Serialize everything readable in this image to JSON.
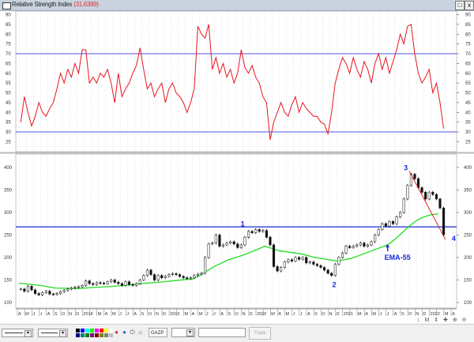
{
  "window": {
    "title": "Relative Strength Index",
    "value": "(31.6399)",
    "restore_label": "□",
    "close_label": "x"
  },
  "colors": {
    "rsi_line": "#e8141c",
    "rsi_levels": "#5050e0",
    "ema_line": "#22dd22",
    "level_line": "#1a2ad6",
    "trend_line": "#e0202a",
    "bars": "#111111",
    "annotation": "#1a2ad6"
  },
  "chart_data": [
    {
      "type": "line",
      "title": "Relative Strength Index",
      "start": "2017-04",
      "interval": "semi-monthly",
      "ylim": [
        20,
        95
      ],
      "yticks": [
        25,
        30,
        35,
        40,
        45,
        50,
        55,
        60,
        65,
        70,
        75,
        80,
        85,
        90
      ],
      "levels": [
        70,
        30
      ],
      "grid": true,
      "values": [
        35,
        48,
        40,
        33,
        38,
        45,
        40,
        38,
        42,
        45,
        52,
        60,
        55,
        62,
        58,
        65,
        60,
        72,
        72,
        55,
        58,
        55,
        60,
        58,
        62,
        55,
        45,
        60,
        48,
        52,
        55,
        60,
        64,
        73,
        62,
        52,
        55,
        48,
        52,
        55,
        45,
        52,
        55,
        50,
        48,
        45,
        40,
        45,
        52,
        84,
        80,
        78,
        85,
        62,
        68,
        60,
        65,
        58,
        62,
        55,
        60,
        72,
        63,
        60,
        64,
        58,
        55,
        48,
        45,
        26,
        35,
        40,
        45,
        40,
        38,
        44,
        48,
        40,
        45,
        42,
        40,
        38,
        38,
        35,
        34,
        29,
        40,
        55,
        62,
        68,
        65,
        60,
        68,
        62,
        58,
        66,
        62,
        55,
        65,
        70,
        62,
        68,
        60,
        66,
        72,
        80,
        75,
        84,
        85,
        70,
        60,
        55,
        58,
        62,
        50,
        55,
        45,
        31.64
      ]
    },
    {
      "type": "bar",
      "subtype": "ohlc",
      "start": "2017-04",
      "interval": "semi-monthly",
      "ylim": [
        85,
        420
      ],
      "yticks": [
        100,
        150,
        200,
        250,
        300,
        350,
        400
      ],
      "grid": true,
      "close": [
        130,
        125,
        136,
        128,
        120,
        117,
        122,
        125,
        119,
        118,
        120,
        124,
        127,
        130,
        132,
        134,
        135,
        138,
        148,
        142,
        140,
        144,
        143,
        142,
        146,
        150,
        145,
        142,
        138,
        146,
        140,
        138,
        142,
        150,
        160,
        172,
        162,
        150,
        160,
        155,
        158,
        162,
        164,
        162,
        158,
        155,
        153,
        155,
        160,
        163,
        165,
        200,
        230,
        232,
        250,
        225,
        228,
        232,
        235,
        230,
        222,
        228,
        245,
        258,
        255,
        262,
        258,
        260,
        245,
        228,
        180,
        170,
        178,
        190,
        195,
        192,
        200,
        196,
        200,
        188,
        190,
        185,
        182,
        178,
        172,
        165,
        160,
        185,
        200,
        210,
        225,
        222,
        225,
        228,
        232,
        225,
        228,
        235,
        250,
        262,
        275,
        270,
        280,
        275,
        290,
        300,
        330,
        360,
        385,
        375,
        355,
        345,
        330,
        345,
        340,
        330,
        310,
        250
      ],
      "ema": {
        "label": "EMA-55",
        "months": [
          "2017-04",
          "2017-07",
          "2017-09",
          "2017-12",
          "2018-03",
          "2018-06",
          "2018-09",
          "2018-12",
          "2019-03",
          "2019-04",
          "2019-05",
          "2019-07",
          "2019-09",
          "2019-11",
          "2020-01",
          "2020-02",
          "2020-04",
          "2020-07",
          "2020-09",
          "2020-12",
          "2021-02",
          "2021-04",
          "2021-06",
          "2021-07",
          "2021-08",
          "2021-09",
          "2021-10",
          "2021-11",
          "2021-12",
          "2022-01",
          "2022-02"
        ],
        "values": [
          143,
          138,
          132,
          131,
          134,
          137,
          142,
          146,
          151,
          152,
          160,
          180,
          195,
          205,
          218,
          225,
          215,
          208,
          200,
          192,
          198,
          210,
          222,
          228,
          240,
          255,
          270,
          282,
          290,
          295,
          297
        ]
      },
      "level": 268,
      "trendline": {
        "from": [
          "2021-10",
          392
        ],
        "to": [
          "2022-03",
          240
        ]
      },
      "annotations": [
        {
          "text": "1",
          "date": "2019-11",
          "price": 262
        },
        {
          "text": "2",
          "date": "2020-11",
          "price": 155
        },
        {
          "text": "3",
          "date": "2021-10",
          "price": 390
        },
        {
          "text": "4",
          "date": "2022-03",
          "price": 258
        },
        {
          "text": "EMA-55",
          "date": "2021-07",
          "price": 226,
          "arrow": "up"
        }
      ]
    }
  ],
  "x_axis": {
    "labels": [
      "A",
      "M",
      "J",
      "J",
      "A",
      "S",
      "O",
      "N",
      "D",
      "2018",
      "",
      "M",
      "A",
      "M",
      "J",
      "J",
      "A",
      "S",
      "O",
      "N",
      "D",
      "2019",
      "",
      "M",
      "A",
      "M",
      "J",
      "J",
      "A",
      "S",
      "O",
      "N",
      "D",
      "2020",
      "",
      "M",
      "A",
      "M",
      "J",
      "J",
      "A",
      "S",
      "O",
      "N",
      "D",
      "2021",
      "",
      "M",
      "A",
      "M",
      "J",
      "J",
      "A",
      "S",
      "O",
      "N",
      "D",
      "2022",
      "",
      "M",
      "A"
    ]
  },
  "toolbar": {
    "symbol": "GAZP",
    "trade_label": "Trade",
    "palette": [
      "#000000",
      "#0000ff",
      "#00ffff",
      "#00ff00",
      "#ff00ff",
      "#ff0000",
      "#ffff00",
      "#ffffff",
      "#000080",
      "#008080",
      "#008000",
      "#800080",
      "#800000",
      "#808000",
      "#808080",
      "#c0c0c0"
    ],
    "nav_icons": [
      "scroll-reset-icon",
      "zoom-icon",
      "scale-icon",
      "crosshair-icon",
      "zoom-in-icon",
      "zoom-out-icon",
      "scroll-left-icon",
      "scroll-right-icon",
      "fit-icon"
    ]
  }
}
